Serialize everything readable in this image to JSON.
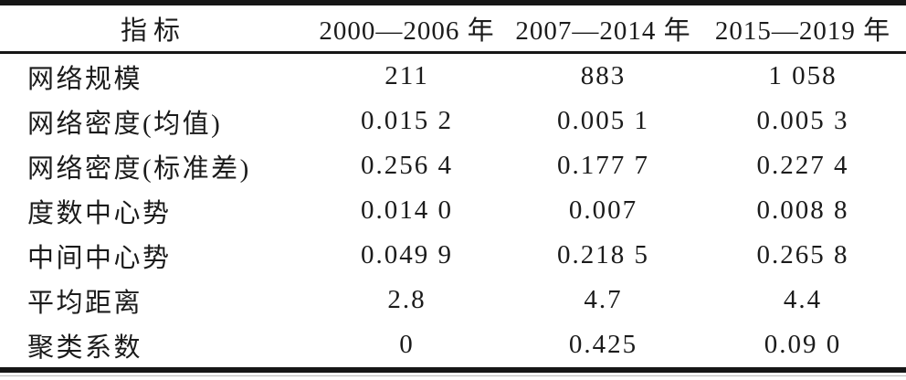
{
  "table": {
    "columns": [
      "指标",
      "2000—2006 年",
      "2007—2014 年",
      "2015—2019 年"
    ],
    "rows": [
      {
        "label": "网络规模",
        "values": [
          "211",
          "883",
          "1 058"
        ]
      },
      {
        "label": "网络密度(均值)",
        "values": [
          "0.015 2",
          "0.005 1",
          "0.005 3"
        ]
      },
      {
        "label": "网络密度(标准差)",
        "values": [
          "0.256 4",
          "0.177 7",
          "0.227 4"
        ]
      },
      {
        "label": "度数中心势",
        "values": [
          "0.014 0",
          "0.007",
          "0.008 8"
        ]
      },
      {
        "label": "中间中心势",
        "values": [
          "0.049 9",
          "0.218 5",
          "0.265 8"
        ]
      },
      {
        "label": "平均距离",
        "values": [
          "2.8",
          "4.7",
          "4.4"
        ]
      },
      {
        "label": "聚类系数",
        "values": [
          "0",
          "0.425",
          "0.09 0"
        ]
      }
    ],
    "colors": {
      "text": "#1b1b1b",
      "rule": "#161616",
      "background": "#ffffff"
    }
  },
  "chart_data": {
    "type": "table",
    "title": "",
    "columns": [
      "指标",
      "2000—2006 年",
      "2007—2014 年",
      "2015—2019 年"
    ],
    "rows": [
      [
        "网络规模",
        "211",
        "883",
        "1 058"
      ],
      [
        "网络密度(均值)",
        "0.015 2",
        "0.005 1",
        "0.005 3"
      ],
      [
        "网络密度(标准差)",
        "0.256 4",
        "0.177 7",
        "0.227 4"
      ],
      [
        "度数中心势",
        "0.014 0",
        "0.007",
        "0.008 8"
      ],
      [
        "中间中心势",
        "0.049 9",
        "0.218 5",
        "0.265 8"
      ],
      [
        "平均距离",
        "2.8",
        "4.7",
        "4.4"
      ],
      [
        "聚类系数",
        "0",
        "0.425",
        "0.09 0"
      ]
    ]
  }
}
